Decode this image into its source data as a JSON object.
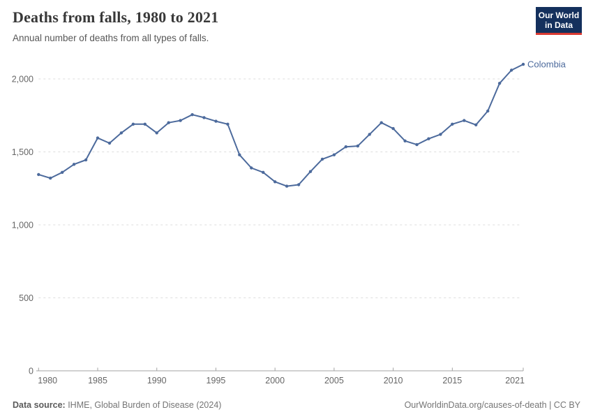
{
  "header": {
    "title": "Deaths from falls, 1980 to 2021",
    "subtitle": "Annual number of deaths from all types of falls."
  },
  "logo": {
    "line1": "Our World",
    "line2": "in Data"
  },
  "chart_data": {
    "type": "line",
    "title": "Deaths from falls, 1980 to 2021",
    "xlabel": "",
    "ylabel": "",
    "xlim": [
      1980,
      2021
    ],
    "ylim": [
      0,
      2000
    ],
    "x_ticks": [
      1980,
      1985,
      1990,
      1995,
      2000,
      2005,
      2010,
      2015,
      2021
    ],
    "y_ticks": [
      0,
      500,
      1000,
      1500,
      2000
    ],
    "grid": "horizontal-dashed",
    "legend_position": "end-of-line-label",
    "x": [
      1980,
      1981,
      1982,
      1983,
      1984,
      1985,
      1986,
      1987,
      1988,
      1989,
      1990,
      1991,
      1992,
      1993,
      1994,
      1995,
      1996,
      1997,
      1998,
      1999,
      2000,
      2001,
      2002,
      2003,
      2004,
      2005,
      2006,
      2007,
      2008,
      2009,
      2010,
      2011,
      2012,
      2013,
      2014,
      2015,
      2016,
      2017,
      2018,
      2019,
      2020,
      2021
    ],
    "series": [
      {
        "name": "Colombia",
        "color": "#4C6A9C",
        "values": [
          1345,
          1320,
          1360,
          1415,
          1445,
          1595,
          1560,
          1630,
          1690,
          1690,
          1630,
          1700,
          1715,
          1755,
          1735,
          1710,
          1690,
          1480,
          1390,
          1360,
          1295,
          1265,
          1275,
          1365,
          1450,
          1480,
          1535,
          1540,
          1620,
          1700,
          1660,
          1575,
          1550,
          1590,
          1620,
          1690,
          1715,
          1685,
          1780,
          1970,
          2060,
          2100
        ]
      }
    ]
  },
  "footer": {
    "source_label": "Data source:",
    "source_text": " IHME, Global Burden of Disease (2024)",
    "credit": "OurWorldinData.org/causes-of-death | CC BY"
  },
  "colors": {
    "line": "#4C6A9C",
    "grid": "#DDDDDD",
    "axis": "#A3A3A3",
    "tick_label": "#666666",
    "title": "#383838",
    "logo_bg": "#14305D",
    "logo_red": "#D93A32"
  }
}
